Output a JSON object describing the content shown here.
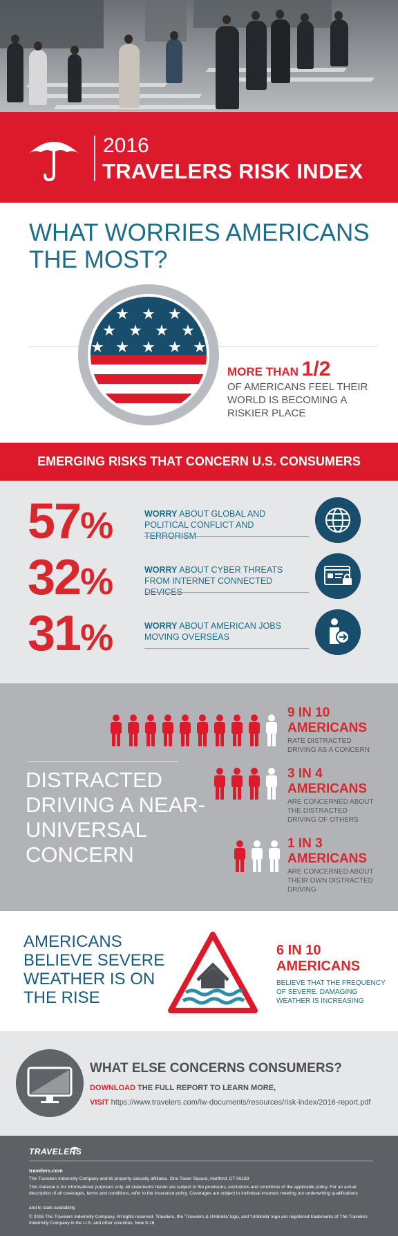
{
  "brand": {
    "year": "2016",
    "title": "TRAVELERS RISK INDEX"
  },
  "worries": {
    "question": "WHAT WORRIES AMERICANS THE MOST?",
    "stat_prefix": "MORE THAN ",
    "stat_value": "1/2",
    "stat_text": "OF AMERICANS FEEL THEIR WORLD IS BECOMING A RISKIER PLACE"
  },
  "emerging": {
    "heading": "EMERGING RISKS THAT CONCERN U.S. CONSUMERS",
    "items": [
      {
        "pct": "57",
        "sign": "%",
        "worry": "WORRY",
        "text": " ABOUT GLOBAL AND POLITICAL CONFLICT AND TERRORISM",
        "icon": "globe-icon"
      },
      {
        "pct": "32",
        "sign": "%",
        "worry": "WORRY",
        "text": " ABOUT CYBER THREATS FROM INTERNET CONNECTED DEVICES",
        "icon": "cyber-lock-icon"
      },
      {
        "pct": "31",
        "sign": "%",
        "worry": "WORRY",
        "text": "  ABOUT AMERICAN JOBS MOVING OVERSEAS",
        "icon": "job-transfer-icon"
      }
    ]
  },
  "driving": {
    "heading": "DISTRACTED DRIVING A NEAR-UNIVERSAL CONCERN",
    "stats": [
      {
        "title_a": "9 IN 10",
        "title_b": "AMERICANS",
        "text": "RATE DISTRACTED DRIVING AS A CONCERN",
        "red": 9,
        "total": 10
      },
      {
        "title_a": "3 IN 4",
        "title_b": "AMERICANS",
        "text": "ARE CONCERNED ABOUT THE DISTRACTED DRIVING OF OTHERS",
        "red": 3,
        "total": 4
      },
      {
        "title_a": "1 IN 3",
        "title_b": "AMERICANS",
        "text": "ARE CONCERNED ABOUT THEIR OWN DISTRACTED DRIVING",
        "red": 1,
        "total": 3
      }
    ]
  },
  "weather": {
    "heading": "AMERICANS BELIEVE SEVERE WEATHER IS ON THE RISE",
    "stat_a": "6 IN 10",
    "stat_b": "AMERICANS",
    "text_a": "BELIEVE THAT THE FREQUENCY",
    "text_b": "OF SEVERE, DAMAGING",
    "text_c": "WEATHER IS INCREASING"
  },
  "more": {
    "heading": "WHAT ELSE CONCERNS CONSUMERS?",
    "download": "DOWNLOAD",
    "download_rest": " THE FULL REPORT TO LEARN MORE,",
    "visit": "VISIT",
    "url": " https://www.travelers.com/iw-documents/resources/risk-index/2016-report.pdf"
  },
  "footer": {
    "logo": "TRAVELERS",
    "site": "travelers.com",
    "line1": "The Travelers Indemnity Company and its property casualty affiliates. One Tower Square, Hartford, CT 06183",
    "line2": "This material is for informational purposes only. All statements herein are subject to the provisions, exclusions and conditions of the applicable policy. For an actual description of all coverages, terms and conditions, refer to the insurance policy. Coverages are subject to individual insureds meeting our underwriting qualifications",
    "line3": "and to state availability.",
    "line4": "© 2016 The Travelers Indemnity Company. All rights reserved. Travelers, the 'Travelers & Umbrella' logo, and 'Umbrella' logo are registered trademarks of The Travelers Indemnity Company in the U.S. and other countries. New 8-16"
  },
  "colors": {
    "brand_red": "#dd1a2b",
    "teal_blue": "#1b6d8c",
    "navy": "#184e6b",
    "gray": "#b1b3b7"
  }
}
